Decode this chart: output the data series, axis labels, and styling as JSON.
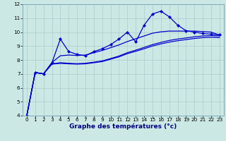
{
  "xlabel": "Graphe des températures (°c)",
  "bg_color": "#cce8e4",
  "grid_color": "#aacccc",
  "line_color": "#0000cc",
  "xlim": [
    -0.5,
    23.5
  ],
  "ylim": [
    4,
    12
  ],
  "xticks": [
    0,
    1,
    2,
    3,
    4,
    5,
    6,
    7,
    8,
    9,
    10,
    11,
    12,
    13,
    14,
    15,
    16,
    17,
    18,
    19,
    20,
    21,
    22,
    23
  ],
  "yticks": [
    4,
    5,
    6,
    7,
    8,
    9,
    10,
    11,
    12
  ],
  "line1_x": [
    0,
    1,
    2,
    3,
    4,
    5,
    6,
    7,
    8,
    9,
    10,
    11,
    12,
    13,
    14,
    15,
    16,
    17,
    18,
    19,
    20,
    21,
    22,
    23
  ],
  "line1_y": [
    4.0,
    7.1,
    7.0,
    7.8,
    9.5,
    8.6,
    8.4,
    8.3,
    8.6,
    8.8,
    9.1,
    9.5,
    10.0,
    9.3,
    10.5,
    11.3,
    11.5,
    11.1,
    10.5,
    10.1,
    10.0,
    9.9,
    9.85,
    9.8
  ],
  "line2_x": [
    0,
    1,
    2,
    3,
    4,
    5,
    6,
    7,
    8,
    9,
    10,
    11,
    12,
    13,
    14,
    15,
    16,
    17,
    18,
    19,
    20,
    21,
    22,
    23
  ],
  "line2_y": [
    4.0,
    7.1,
    7.0,
    7.7,
    7.75,
    7.72,
    7.7,
    7.72,
    7.8,
    7.88,
    8.05,
    8.22,
    8.45,
    8.62,
    8.8,
    9.0,
    9.15,
    9.28,
    9.38,
    9.46,
    9.54,
    9.6,
    9.63,
    9.6
  ],
  "line3_x": [
    0,
    1,
    2,
    3,
    4,
    5,
    6,
    7,
    8,
    9,
    10,
    11,
    12,
    13,
    14,
    15,
    16,
    17,
    18,
    19,
    20,
    21,
    22,
    23
  ],
  "line3_y": [
    4.0,
    7.1,
    7.0,
    7.72,
    7.8,
    7.76,
    7.73,
    7.76,
    7.84,
    7.93,
    8.1,
    8.28,
    8.52,
    8.7,
    8.9,
    9.1,
    9.26,
    9.4,
    9.5,
    9.58,
    9.66,
    9.72,
    9.75,
    9.72
  ],
  "line4_x": [
    0,
    1,
    2,
    3,
    4,
    5,
    6,
    7,
    8,
    9,
    10,
    11,
    12,
    13,
    14,
    15,
    16,
    17,
    18,
    19,
    20,
    21,
    22,
    23
  ],
  "line4_y": [
    4.0,
    7.1,
    7.0,
    7.82,
    8.3,
    8.35,
    8.32,
    8.35,
    8.52,
    8.68,
    8.88,
    9.08,
    9.32,
    9.52,
    9.72,
    9.92,
    10.02,
    10.07,
    10.07,
    10.07,
    10.07,
    10.04,
    10.0,
    9.78
  ],
  "xlabel_fontsize": 6.5,
  "tick_fontsize": 5.2
}
